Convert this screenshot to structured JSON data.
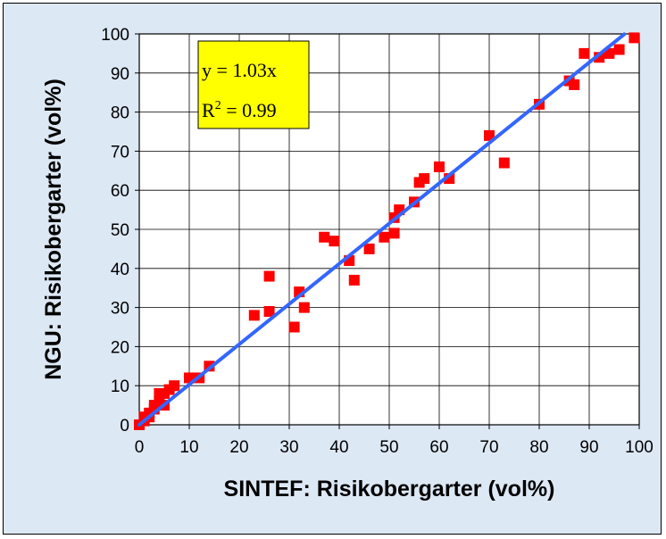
{
  "chart_data": {
    "type": "scatter",
    "title": "",
    "xlabel": "SINTEF: Risikobergarter (vol%)",
    "ylabel": "NGU: Risikobergarter (vol%)",
    "xlim": [
      0,
      100
    ],
    "ylim": [
      0,
      100
    ],
    "xticks": [
      "0",
      "10",
      "20",
      "30",
      "40",
      "50",
      "60",
      "70",
      "80",
      "90",
      "100"
    ],
    "yticks": [
      "0",
      "10",
      "20",
      "30",
      "40",
      "50",
      "60",
      "70",
      "80",
      "90",
      "100"
    ],
    "grid": true,
    "legend": "none",
    "annotation": {
      "line1": "y = 1.03x",
      "line2_prefix": "R",
      "line2_sup": "2",
      "line2_suffix": " = 0.99"
    },
    "trendline": {
      "slope": 1.03,
      "x_range": [
        0,
        97
      ]
    },
    "colors": {
      "points": "#ff0000",
      "trendline": "#3366ff",
      "plot_bg": "#ffffff",
      "annotation_bg": "#ffff00"
    },
    "points": [
      [
        0,
        0
      ],
      [
        1,
        1
      ],
      [
        1,
        2
      ],
      [
        2,
        2
      ],
      [
        2,
        3
      ],
      [
        3,
        4
      ],
      [
        3,
        5
      ],
      [
        4,
        8
      ],
      [
        4,
        6
      ],
      [
        5,
        5
      ],
      [
        5,
        8
      ],
      [
        6,
        9
      ],
      [
        7,
        10
      ],
      [
        10,
        12
      ],
      [
        12,
        12
      ],
      [
        14,
        15
      ],
      [
        23,
        28
      ],
      [
        26,
        29
      ],
      [
        26,
        38
      ],
      [
        31,
        25
      ],
      [
        32,
        34
      ],
      [
        33,
        30
      ],
      [
        37,
        48
      ],
      [
        39,
        47
      ],
      [
        42,
        42
      ],
      [
        43,
        37
      ],
      [
        46,
        45
      ],
      [
        49,
        48
      ],
      [
        51,
        49
      ],
      [
        51,
        53
      ],
      [
        52,
        55
      ],
      [
        55,
        57
      ],
      [
        56,
        62
      ],
      [
        57,
        63
      ],
      [
        60,
        66
      ],
      [
        62,
        63
      ],
      [
        70,
        74
      ],
      [
        73,
        67
      ],
      [
        80,
        82
      ],
      [
        86,
        88
      ],
      [
        87,
        87
      ],
      [
        89,
        95
      ],
      [
        92,
        94
      ],
      [
        94,
        95
      ],
      [
        96,
        96
      ],
      [
        99,
        99
      ]
    ]
  }
}
